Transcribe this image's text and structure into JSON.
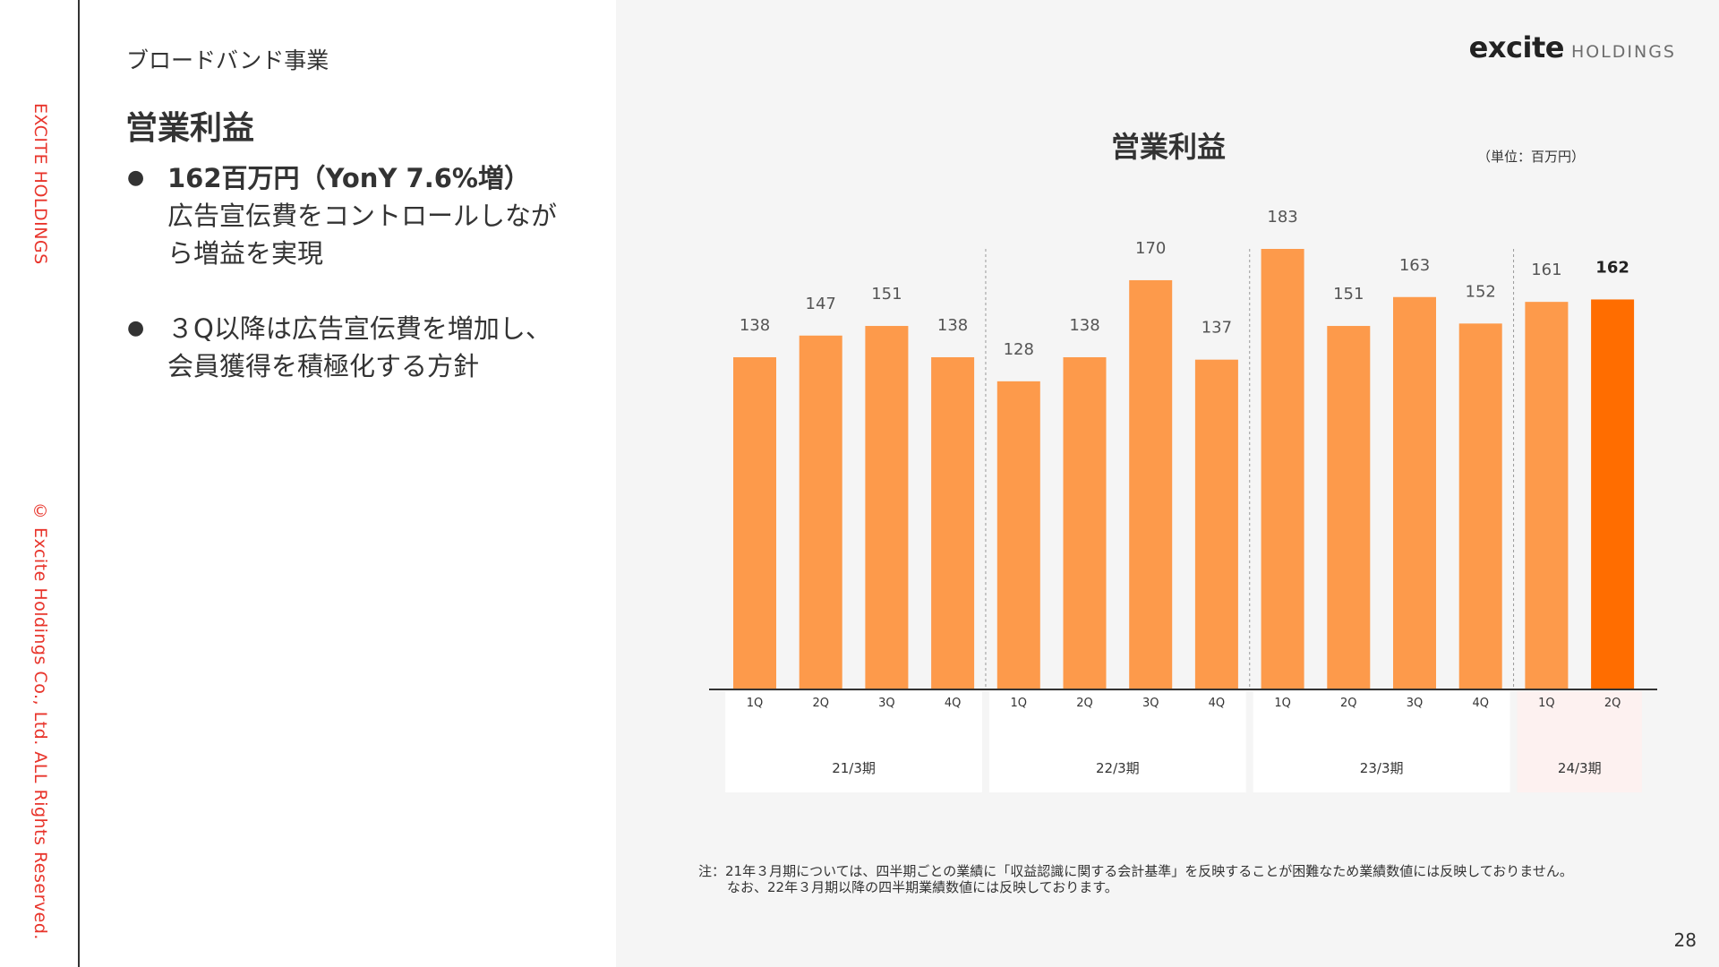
{
  "sidebar": {
    "company": "EXCITE HOLDINGS",
    "copyright": "© Excite Holdings Co., Ltd. ALL Rights Reserved."
  },
  "left": {
    "section": "ブロードバンド事業",
    "heading": "営業利益",
    "bullets": [
      {
        "strong": "162百万円（YonY 7.6%増）",
        "lines": [
          "広告宣伝費をコントロールしなが",
          "ら増益を実現"
        ]
      },
      {
        "strong": "",
        "lines": [
          "３Q以降は広告宣伝費を増加し、",
          "会員獲得を積極化する方針"
        ]
      }
    ]
  },
  "logo": {
    "brand": "excite",
    "suffix": "HOLDINGS"
  },
  "colors": {
    "accent": "#e8342b",
    "bar": "#fd9a4b",
    "bar_highlight": "#ff6d00",
    "period_bg": "#ffffff",
    "period_bg_highlight": "#fdf1f0"
  },
  "chart_data": {
    "type": "bar",
    "title": "営業利益",
    "unit_label": "（単位：百万円）",
    "categories": [
      "1Q",
      "2Q",
      "3Q",
      "4Q",
      "1Q",
      "2Q",
      "3Q",
      "4Q",
      "1Q",
      "2Q",
      "3Q",
      "4Q",
      "1Q",
      "2Q"
    ],
    "groups": [
      {
        "label": "21/3期",
        "count": 4
      },
      {
        "label": "22/3期",
        "count": 4
      },
      {
        "label": "23/3期",
        "count": 4
      },
      {
        "label": "24/3期",
        "count": 2
      }
    ],
    "values": [
      138,
      147,
      151,
      138,
      128,
      138,
      170,
      137,
      183,
      151,
      163,
      152,
      161,
      162
    ],
    "highlight_index": 13,
    "ylim": [
      0,
      183
    ],
    "grid": false,
    "note_lines": [
      "注：21年３月期については、四半期ごとの業績に「収益認識に関する会計基準」を反映することが困難なため業績数値には反映しておりません。",
      "なお、22年３月期以降の四半期業績数値には反映しております。"
    ]
  },
  "page_number": "28"
}
